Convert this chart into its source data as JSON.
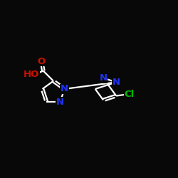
{
  "background_color": "#080808",
  "bond_color": "#ffffff",
  "bond_width": 1.6,
  "figsize": [
    2.5,
    2.5
  ],
  "dpi": 100,
  "xlim": [
    0,
    10
  ],
  "ylim": [
    2.0,
    7.0
  ],
  "atom_colors": {
    "O": "#cc1100",
    "N": "#2233ee",
    "Cl": "#00bb00",
    "C": "#ffffff"
  },
  "label_fontsize": 9.5
}
